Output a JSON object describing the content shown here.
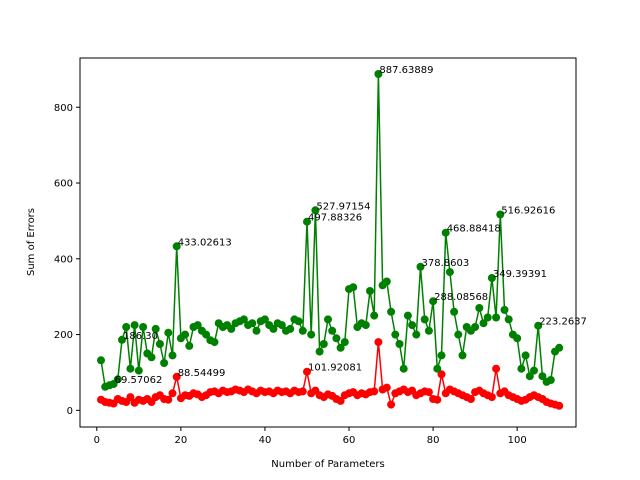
{
  "chart_data": {
    "type": "line",
    "title": "",
    "xlabel": "Number of Parameters",
    "ylabel": "Sum of Errors",
    "xlim": [
      -4,
      114
    ],
    "ylim": [
      -44,
      930
    ],
    "xticks": [
      0,
      20,
      40,
      60,
      80,
      100
    ],
    "yticks": [
      0,
      200,
      400,
      600,
      800
    ],
    "grid": false,
    "legend": "none",
    "series": [
      {
        "color": "#008000",
        "marker": "circle",
        "points": [
          [
            1,
            132
          ],
          [
            2,
            62
          ],
          [
            3,
            66
          ],
          [
            4,
            69.57
          ],
          [
            5,
            82
          ],
          [
            6,
            186.3
          ],
          [
            7,
            220
          ],
          [
            8,
            110
          ],
          [
            9,
            225
          ],
          [
            10,
            105
          ],
          [
            11,
            220
          ],
          [
            12,
            150
          ],
          [
            13,
            140
          ],
          [
            14,
            215
          ],
          [
            15,
            175
          ],
          [
            16,
            125
          ],
          [
            17,
            205
          ],
          [
            18,
            145
          ],
          [
            19,
            433.02613
          ],
          [
            20,
            190
          ],
          [
            21,
            200
          ],
          [
            22,
            170
          ],
          [
            23,
            220
          ],
          [
            24,
            225
          ],
          [
            25,
            210
          ],
          [
            26,
            200
          ],
          [
            27,
            185
          ],
          [
            28,
            180
          ],
          [
            29,
            230
          ],
          [
            30,
            220
          ],
          [
            31,
            225
          ],
          [
            32,
            215
          ],
          [
            33,
            230
          ],
          [
            34,
            235
          ],
          [
            35,
            240
          ],
          [
            36,
            225
          ],
          [
            37,
            230
          ],
          [
            38,
            210
          ],
          [
            39,
            235
          ],
          [
            40,
            240
          ],
          [
            41,
            225
          ],
          [
            42,
            215
          ],
          [
            43,
            230
          ],
          [
            44,
            225
          ],
          [
            45,
            210
          ],
          [
            46,
            215
          ],
          [
            47,
            240
          ],
          [
            48,
            235
          ],
          [
            49,
            210
          ],
          [
            50,
            497.88326
          ],
          [
            51,
            200
          ],
          [
            52,
            527.97154
          ],
          [
            53,
            155
          ],
          [
            54,
            175
          ],
          [
            55,
            240
          ],
          [
            56,
            210
          ],
          [
            57,
            190
          ],
          [
            58,
            165
          ],
          [
            59,
            180
          ],
          [
            60,
            320
          ],
          [
            61,
            325
          ],
          [
            62,
            220
          ],
          [
            63,
            230
          ],
          [
            64,
            225
          ],
          [
            65,
            315
          ],
          [
            66,
            250
          ],
          [
            67,
            887.63889
          ],
          [
            68,
            330
          ],
          [
            69,
            340
          ],
          [
            70,
            260
          ],
          [
            71,
            200
          ],
          [
            72,
            175
          ],
          [
            73,
            110
          ],
          [
            74,
            250
          ],
          [
            75,
            225
          ],
          [
            76,
            200
          ],
          [
            77,
            378.8603
          ],
          [
            78,
            240
          ],
          [
            79,
            210
          ],
          [
            80,
            288.08568
          ],
          [
            81,
            110
          ],
          [
            82,
            145
          ],
          [
            83,
            468.88418
          ],
          [
            84,
            365
          ],
          [
            85,
            260
          ],
          [
            86,
            200
          ],
          [
            87,
            145
          ],
          [
            88,
            220
          ],
          [
            89,
            210
          ],
          [
            90,
            220
          ],
          [
            91,
            270
          ],
          [
            92,
            230
          ],
          [
            93,
            245
          ],
          [
            94,
            349.39391
          ],
          [
            95,
            245
          ],
          [
            96,
            516.92616
          ],
          [
            97,
            265
          ],
          [
            98,
            240
          ],
          [
            99,
            200
          ],
          [
            100,
            190
          ],
          [
            101,
            110
          ],
          [
            102,
            145
          ],
          [
            103,
            90
          ],
          [
            104,
            105
          ],
          [
            105,
            223.2637
          ],
          [
            106,
            90
          ],
          [
            107,
            75
          ],
          [
            108,
            80
          ],
          [
            109,
            155
          ],
          [
            110,
            165
          ]
        ]
      },
      {
        "color": "#ff0000",
        "marker": "circle",
        "points": [
          [
            1,
            28
          ],
          [
            2,
            22
          ],
          [
            3,
            20
          ],
          [
            4,
            18
          ],
          [
            5,
            30
          ],
          [
            6,
            25
          ],
          [
            7,
            22
          ],
          [
            8,
            35
          ],
          [
            9,
            20
          ],
          [
            10,
            28
          ],
          [
            11,
            25
          ],
          [
            12,
            30
          ],
          [
            13,
            22
          ],
          [
            14,
            35
          ],
          [
            15,
            40
          ],
          [
            16,
            30
          ],
          [
            17,
            28
          ],
          [
            18,
            45
          ],
          [
            19,
            88.54499
          ],
          [
            20,
            32
          ],
          [
            21,
            40
          ],
          [
            22,
            38
          ],
          [
            23,
            45
          ],
          [
            24,
            42
          ],
          [
            25,
            35
          ],
          [
            26,
            40
          ],
          [
            27,
            48
          ],
          [
            28,
            50
          ],
          [
            29,
            45
          ],
          [
            30,
            52
          ],
          [
            31,
            48
          ],
          [
            32,
            50
          ],
          [
            33,
            55
          ],
          [
            34,
            52
          ],
          [
            35,
            48
          ],
          [
            36,
            55
          ],
          [
            37,
            50
          ],
          [
            38,
            45
          ],
          [
            39,
            52
          ],
          [
            40,
            48
          ],
          [
            41,
            50
          ],
          [
            42,
            45
          ],
          [
            43,
            52
          ],
          [
            44,
            48
          ],
          [
            45,
            50
          ],
          [
            46,
            45
          ],
          [
            47,
            52
          ],
          [
            48,
            48
          ],
          [
            49,
            50
          ],
          [
            50,
            101.9
          ],
          [
            51,
            45
          ],
          [
            52,
            52
          ],
          [
            53,
            40
          ],
          [
            54,
            35
          ],
          [
            55,
            42
          ],
          [
            56,
            38
          ],
          [
            57,
            30
          ],
          [
            58,
            25
          ],
          [
            59,
            40
          ],
          [
            60,
            45
          ],
          [
            61,
            48
          ],
          [
            62,
            40
          ],
          [
            63,
            45
          ],
          [
            64,
            42
          ],
          [
            65,
            48
          ],
          [
            66,
            50
          ],
          [
            67,
            180
          ],
          [
            68,
            55
          ],
          [
            69,
            60
          ],
          [
            70,
            15
          ],
          [
            71,
            45
          ],
          [
            72,
            50
          ],
          [
            73,
            55
          ],
          [
            74,
            48
          ],
          [
            75,
            52
          ],
          [
            76,
            40
          ],
          [
            77,
            45
          ],
          [
            78,
            50
          ],
          [
            79,
            48
          ],
          [
            80,
            30
          ],
          [
            81,
            28
          ],
          [
            82,
            95
          ],
          [
            83,
            45
          ],
          [
            84,
            55
          ],
          [
            85,
            50
          ],
          [
            86,
            45
          ],
          [
            87,
            40
          ],
          [
            88,
            35
          ],
          [
            89,
            30
          ],
          [
            90,
            48
          ],
          [
            91,
            52
          ],
          [
            92,
            45
          ],
          [
            93,
            40
          ],
          [
            94,
            35
          ],
          [
            95,
            110
          ],
          [
            96,
            45
          ],
          [
            97,
            50
          ],
          [
            98,
            40
          ],
          [
            99,
            35
          ],
          [
            100,
            30
          ],
          [
            101,
            25
          ],
          [
            102,
            28
          ],
          [
            103,
            35
          ],
          [
            104,
            40
          ],
          [
            105,
            35
          ],
          [
            106,
            30
          ],
          [
            107,
            22
          ],
          [
            108,
            18
          ],
          [
            109,
            15
          ],
          [
            110,
            12
          ]
        ]
      }
    ],
    "point_labels": [
      [
        19,
        433.02613,
        "433.02613"
      ],
      [
        50,
        497.88326,
        "497.88326"
      ],
      [
        52,
        527.97154,
        "527.97154"
      ],
      [
        67,
        887.63889,
        "887.63889"
      ],
      [
        77,
        378.8603,
        "378.8603"
      ],
      [
        80,
        288.08568,
        "288.08568"
      ],
      [
        83,
        468.88418,
        "468.88418"
      ],
      [
        94,
        349.39391,
        "349.39391"
      ],
      [
        96,
        516.92616,
        "516.92616"
      ],
      [
        105,
        223.2637,
        "223.2637"
      ],
      [
        6,
        186.3,
        "186.30"
      ],
      [
        4,
        69.57,
        "69.57062"
      ],
      [
        19,
        88.54499,
        "88.54499"
      ],
      [
        50,
        101.9,
        "101.92081"
      ]
    ]
  }
}
